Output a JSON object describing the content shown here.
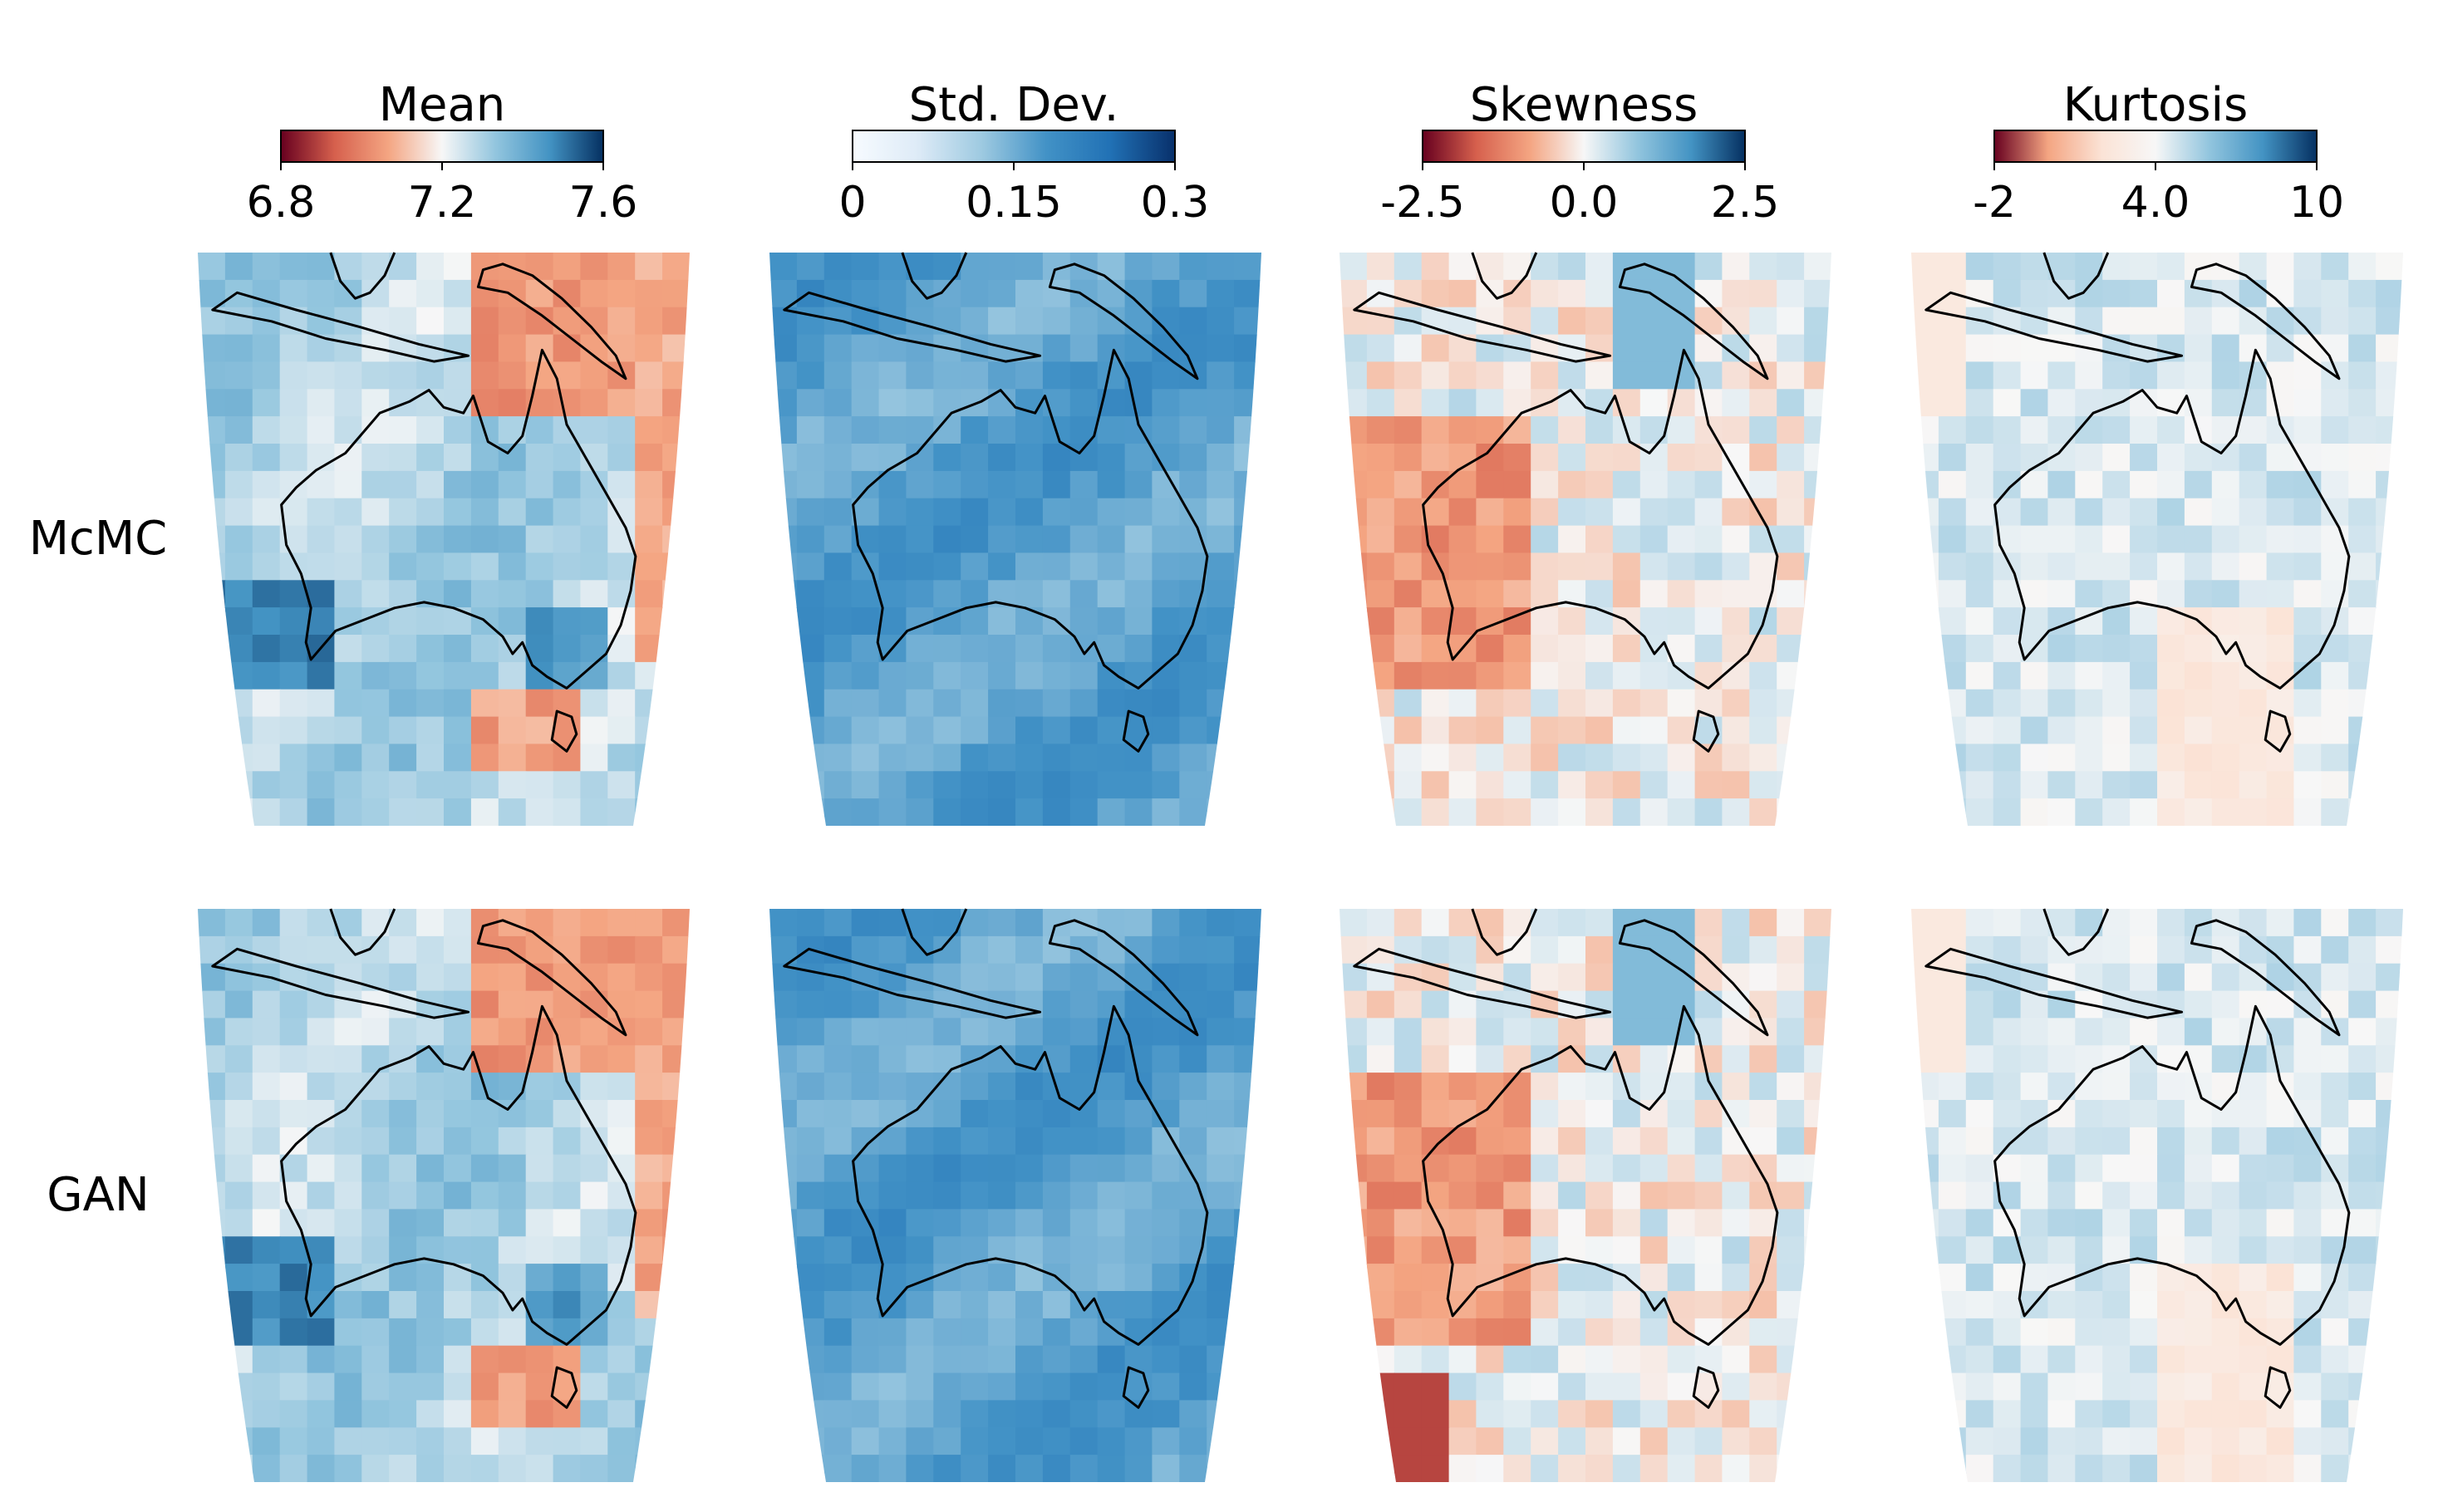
{
  "chart_data": {
    "type": "heatmap",
    "rows": [
      "McMC",
      "GAN"
    ],
    "colorbars": [
      {
        "title": "Mean",
        "colormap": "RdBu",
        "range": [
          6.8,
          7.6
        ],
        "ticks": [
          "6.8",
          "7.2",
          "7.6"
        ]
      },
      {
        "title": "Std. Dev.",
        "colormap": "Blues",
        "range": [
          0,
          0.3
        ],
        "ticks": [
          "0",
          "0.15",
          "0.3"
        ]
      },
      {
        "title": "Skewness",
        "colormap": "RdBu",
        "range": [
          -2.5,
          2.5
        ],
        "ticks": [
          "-2.5",
          "0.0",
          "2.5"
        ]
      },
      {
        "title": "Kurtosis",
        "colormap": "RdBu",
        "range": [
          -2,
          10
        ],
        "ticks": [
          "-2",
          "4.0",
          "10"
        ]
      }
    ],
    "grid": false,
    "legend": "colorbars-top"
  },
  "colors": {
    "dark_red": "#67001f",
    "red": "#d6604d",
    "light_red": "#f4a582",
    "white": "#f7f7f7",
    "light_blue": "#92c5de",
    "blue": "#4393c3",
    "dark_blue": "#053061",
    "coastline": "#000000"
  }
}
